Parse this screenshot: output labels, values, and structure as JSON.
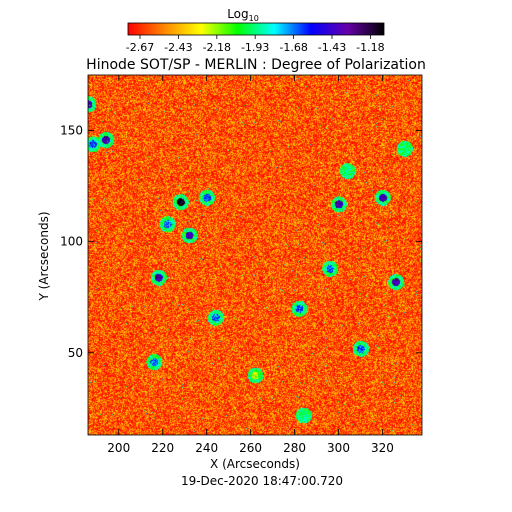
{
  "colorbar": {
    "label": "Log",
    "label_sub": "10",
    "ticks": [
      "-2.67",
      "-2.43",
      "-2.18",
      "-1.93",
      "-1.68",
      "-1.43",
      "-1.18"
    ],
    "range": [
      -2.67,
      -1.18
    ],
    "colors": [
      "#ff0000",
      "#ff8800",
      "#ffff00",
      "#00ff00",
      "#00ffff",
      "#0000ff",
      "#6600aa",
      "#000000"
    ]
  },
  "chart_data": {
    "type": "heatmap",
    "title": "Hinode SOT/SP - MERLIN : Degree of Polarization",
    "xlabel": "X (Arcseconds)",
    "ylabel": "Y (Arcseconds)",
    "xlim": [
      186,
      338
    ],
    "ylim": [
      13,
      175
    ],
    "xticks": [
      200,
      220,
      240,
      260,
      280,
      300,
      320
    ],
    "yticks": [
      50,
      100,
      150
    ],
    "value_range": [
      -2.67,
      -1.18
    ],
    "dominant_value_range": [
      -2.67,
      -2.3
    ],
    "notable_spots": [
      {
        "x": 186,
        "y": 162,
        "value": -1.43
      },
      {
        "x": 188,
        "y": 144,
        "value": -1.68
      },
      {
        "x": 194,
        "y": 146,
        "value": -1.43
      },
      {
        "x": 218,
        "y": 84,
        "value": -1.43
      },
      {
        "x": 216,
        "y": 46,
        "value": -1.68
      },
      {
        "x": 222,
        "y": 108,
        "value": -1.68
      },
      {
        "x": 228,
        "y": 118,
        "value": -1.18
      },
      {
        "x": 232,
        "y": 103,
        "value": -1.43
      },
      {
        "x": 240,
        "y": 120,
        "value": -1.68
      },
      {
        "x": 244,
        "y": 66,
        "value": -1.68
      },
      {
        "x": 282,
        "y": 70,
        "value": -1.68
      },
      {
        "x": 296,
        "y": 88,
        "value": -1.68
      },
      {
        "x": 300,
        "y": 117,
        "value": -1.43
      },
      {
        "x": 304,
        "y": 132,
        "value": -1.93
      },
      {
        "x": 310,
        "y": 52,
        "value": -1.68
      },
      {
        "x": 320,
        "y": 120,
        "value": -1.43
      },
      {
        "x": 326,
        "y": 82,
        "value": -1.43
      },
      {
        "x": 330,
        "y": 142,
        "value": -1.93
      },
      {
        "x": 284,
        "y": 22,
        "value": -1.93
      },
      {
        "x": 262,
        "y": 40,
        "value": -2.18
      }
    ]
  },
  "timestamp": "19-Dec-2020 18:47:00.720"
}
